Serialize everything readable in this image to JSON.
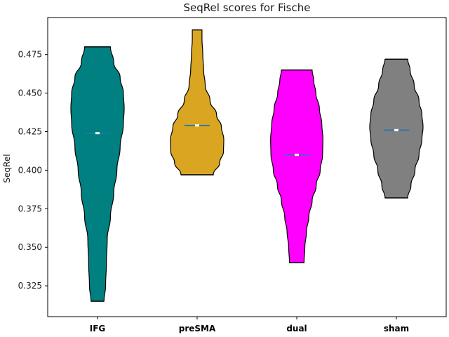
{
  "chart_data": {
    "type": "violin",
    "title": "SeqRel scores for Fische",
    "xlabel": "",
    "ylabel": "SeqRel",
    "ylim": [
      0.305,
      0.499
    ],
    "yticks": [
      {
        "value": 0.325,
        "label": "0.325"
      },
      {
        "value": 0.35,
        "label": "0.350"
      },
      {
        "value": 0.375,
        "label": "0.375"
      },
      {
        "value": 0.4,
        "label": "0.400"
      },
      {
        "value": 0.425,
        "label": "0.425"
      },
      {
        "value": 0.45,
        "label": "0.450"
      },
      {
        "value": 0.475,
        "label": "0.475"
      }
    ],
    "grid": false,
    "median_color": "#1f77b4",
    "violins": [
      {
        "category": "IFG",
        "color": "#008080",
        "min": 0.315,
        "max": 0.48,
        "median": 0.424,
        "max_width": 0.165,
        "profile": [
          [
            0.315,
            0.04
          ],
          [
            0.325,
            0.05
          ],
          [
            0.34,
            0.055
          ],
          [
            0.355,
            0.06
          ],
          [
            0.37,
            0.08
          ],
          [
            0.385,
            0.1
          ],
          [
            0.4,
            0.12
          ],
          [
            0.415,
            0.14
          ],
          [
            0.43,
            0.16
          ],
          [
            0.44,
            0.165
          ],
          [
            0.45,
            0.16
          ],
          [
            0.46,
            0.14
          ],
          [
            0.47,
            0.1
          ],
          [
            0.48,
            0.08
          ]
        ]
      },
      {
        "category": "preSMA",
        "color": "#daa520",
        "min": 0.397,
        "max": 0.491,
        "median": 0.429,
        "max_width": 0.165,
        "profile": [
          [
            0.397,
            0.1
          ],
          [
            0.405,
            0.14
          ],
          [
            0.412,
            0.163
          ],
          [
            0.42,
            0.165
          ],
          [
            0.428,
            0.15
          ],
          [
            0.436,
            0.12
          ],
          [
            0.445,
            0.08
          ],
          [
            0.455,
            0.05
          ],
          [
            0.465,
            0.04
          ],
          [
            0.475,
            0.035
          ],
          [
            0.485,
            0.03
          ],
          [
            0.491,
            0.03
          ]
        ]
      },
      {
        "category": "dual",
        "color": "#ff00ff",
        "min": 0.34,
        "max": 0.465,
        "median": 0.41,
        "max_width": 0.165,
        "profile": [
          [
            0.34,
            0.045
          ],
          [
            0.35,
            0.05
          ],
          [
            0.36,
            0.06
          ],
          [
            0.37,
            0.075
          ],
          [
            0.38,
            0.095
          ],
          [
            0.39,
            0.12
          ],
          [
            0.4,
            0.145
          ],
          [
            0.41,
            0.16
          ],
          [
            0.42,
            0.162
          ],
          [
            0.43,
            0.155
          ],
          [
            0.44,
            0.14
          ],
          [
            0.45,
            0.118
          ],
          [
            0.458,
            0.105
          ],
          [
            0.465,
            0.095
          ]
        ]
      },
      {
        "category": "sham",
        "color": "#808080",
        "min": 0.382,
        "max": 0.472,
        "median": 0.426,
        "max_width": 0.165,
        "profile": [
          [
            0.382,
            0.07
          ],
          [
            0.39,
            0.09
          ],
          [
            0.4,
            0.115
          ],
          [
            0.41,
            0.14
          ],
          [
            0.42,
            0.158
          ],
          [
            0.428,
            0.165
          ],
          [
            0.436,
            0.158
          ],
          [
            0.445,
            0.14
          ],
          [
            0.455,
            0.11
          ],
          [
            0.465,
            0.085
          ],
          [
            0.472,
            0.07
          ]
        ]
      }
    ]
  }
}
